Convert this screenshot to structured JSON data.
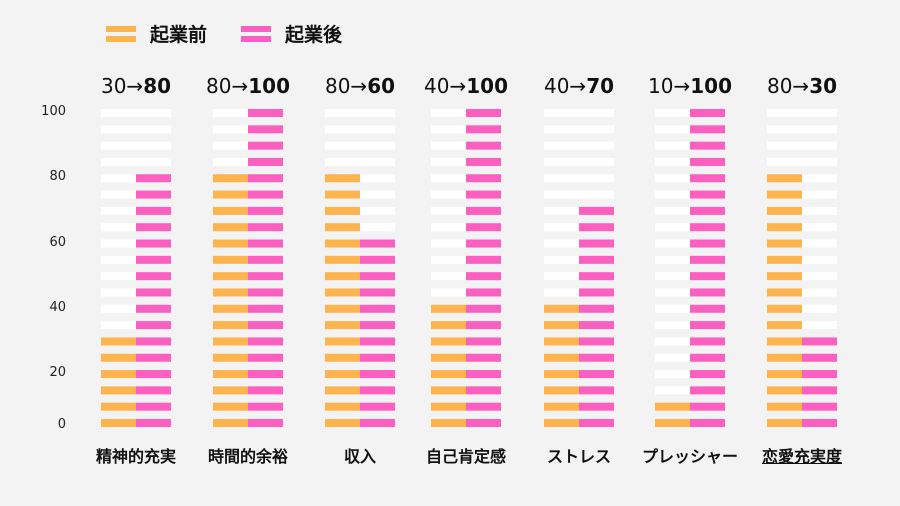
{
  "chart_data": {
    "type": "bar",
    "title": "",
    "xlabel": "",
    "ylabel": "",
    "ylim": [
      0,
      100
    ],
    "yticks": [
      0,
      20,
      40,
      60,
      80,
      100
    ],
    "unit_step": 5,
    "categories": [
      "精神的充実",
      "時間的余裕",
      "収入",
      "自己肯定感",
      "ストレス",
      "プレッシャー",
      "恋愛充実度"
    ],
    "underlined_category_index": 6,
    "series": [
      {
        "name": "起業前",
        "color": "#fdb44e",
        "values": [
          30,
          80,
          80,
          40,
          40,
          10,
          80
        ]
      },
      {
        "name": "起業後",
        "color": "#fb5fbf",
        "values": [
          80,
          100,
          60,
          100,
          70,
          100,
          30
        ]
      }
    ],
    "value_labels": [
      {
        "before": "30→",
        "after": "80"
      },
      {
        "before": "80→",
        "after": "100"
      },
      {
        "before": "80→",
        "after": "60"
      },
      {
        "before": "40→",
        "after": "100"
      },
      {
        "before": "40→",
        "after": "70"
      },
      {
        "before": "10→",
        "after": "100"
      },
      {
        "before": "80→",
        "after": "30"
      }
    ],
    "legend_position": "top-left",
    "grid": false,
    "empty_color": "#ffffff"
  }
}
